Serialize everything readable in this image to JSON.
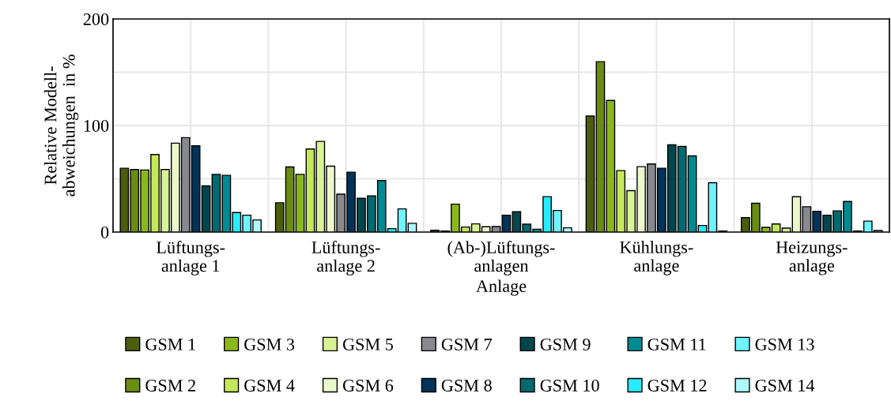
{
  "chart_data": {
    "type": "bar",
    "xlabel": "Anlage",
    "ylabel": "Relative Modell-\nabweichungen  in %",
    "categories": [
      "Lüftungs-\nanlage 1",
      "Lüftungs-\nanlage 2",
      "(Ab-)Lüftungs-\nanlagen",
      "Kühlungs-\nanlage",
      "Heizungs-\nanlage"
    ],
    "series": [
      {
        "name": "GSM 1",
        "color": "#4a5e0c",
        "values": [
          59.9,
          27.5,
          1.7,
          108.9,
          13.5
        ]
      },
      {
        "name": "GSM 2",
        "color": "#6a8c12",
        "values": [
          58.7,
          61.1,
          1.0,
          159.9,
          27.0
        ]
      },
      {
        "name": "GSM 3",
        "color": "#8ab81c",
        "values": [
          58.2,
          54.2,
          26.2,
          123.5,
          4.4
        ]
      },
      {
        "name": "GSM 4",
        "color": "#c4e85a",
        "values": [
          72.8,
          78.0,
          4.7,
          57.7,
          7.6
        ]
      },
      {
        "name": "GSM 5",
        "color": "#d9f296",
        "values": [
          58.7,
          85.1,
          7.7,
          38.9,
          3.7
        ]
      },
      {
        "name": "GSM 6",
        "color": "#ecf7cc",
        "values": [
          83.4,
          61.9,
          5.0,
          61.4,
          33.1
        ]
      },
      {
        "name": "GSM 7",
        "color": "#88888f",
        "values": [
          88.6,
          35.6,
          5.2,
          63.9,
          23.8
        ]
      },
      {
        "name": "GSM 8",
        "color": "#003358",
        "values": [
          80.9,
          56.2,
          15.8,
          59.9,
          19.4
        ]
      },
      {
        "name": "GSM 9",
        "color": "#00474d",
        "values": [
          43.3,
          31.7,
          19.1,
          81.9,
          15.7
        ]
      },
      {
        "name": "GSM 10",
        "color": "#006a70",
        "values": [
          54.2,
          33.9,
          7.4,
          80.4,
          19.9
        ]
      },
      {
        "name": "GSM 11",
        "color": "#008a92",
        "values": [
          53.2,
          48.3,
          2.7,
          71.5,
          28.7
        ]
      },
      {
        "name": "GSM 12",
        "color": "#27ecff",
        "values": [
          18.3,
          3.2,
          33.2,
          6.2,
          1.0
        ]
      },
      {
        "name": "GSM 13",
        "color": "#6ff4ff",
        "values": [
          15.8,
          21.8,
          20.3,
          46.3,
          10.3
        ]
      },
      {
        "name": "GSM 14",
        "color": "#b0f8ff",
        "values": [
          11.4,
          8.2,
          4.0,
          1.0,
          1.5
        ]
      }
    ],
    "ylim": [
      0,
      200
    ],
    "yticks": [
      0,
      {
        "value": 50,
        "label": null
      },
      100,
      {
        "value": 150,
        "label": null
      },
      200
    ],
    "grid": true,
    "legend": "bottom"
  }
}
